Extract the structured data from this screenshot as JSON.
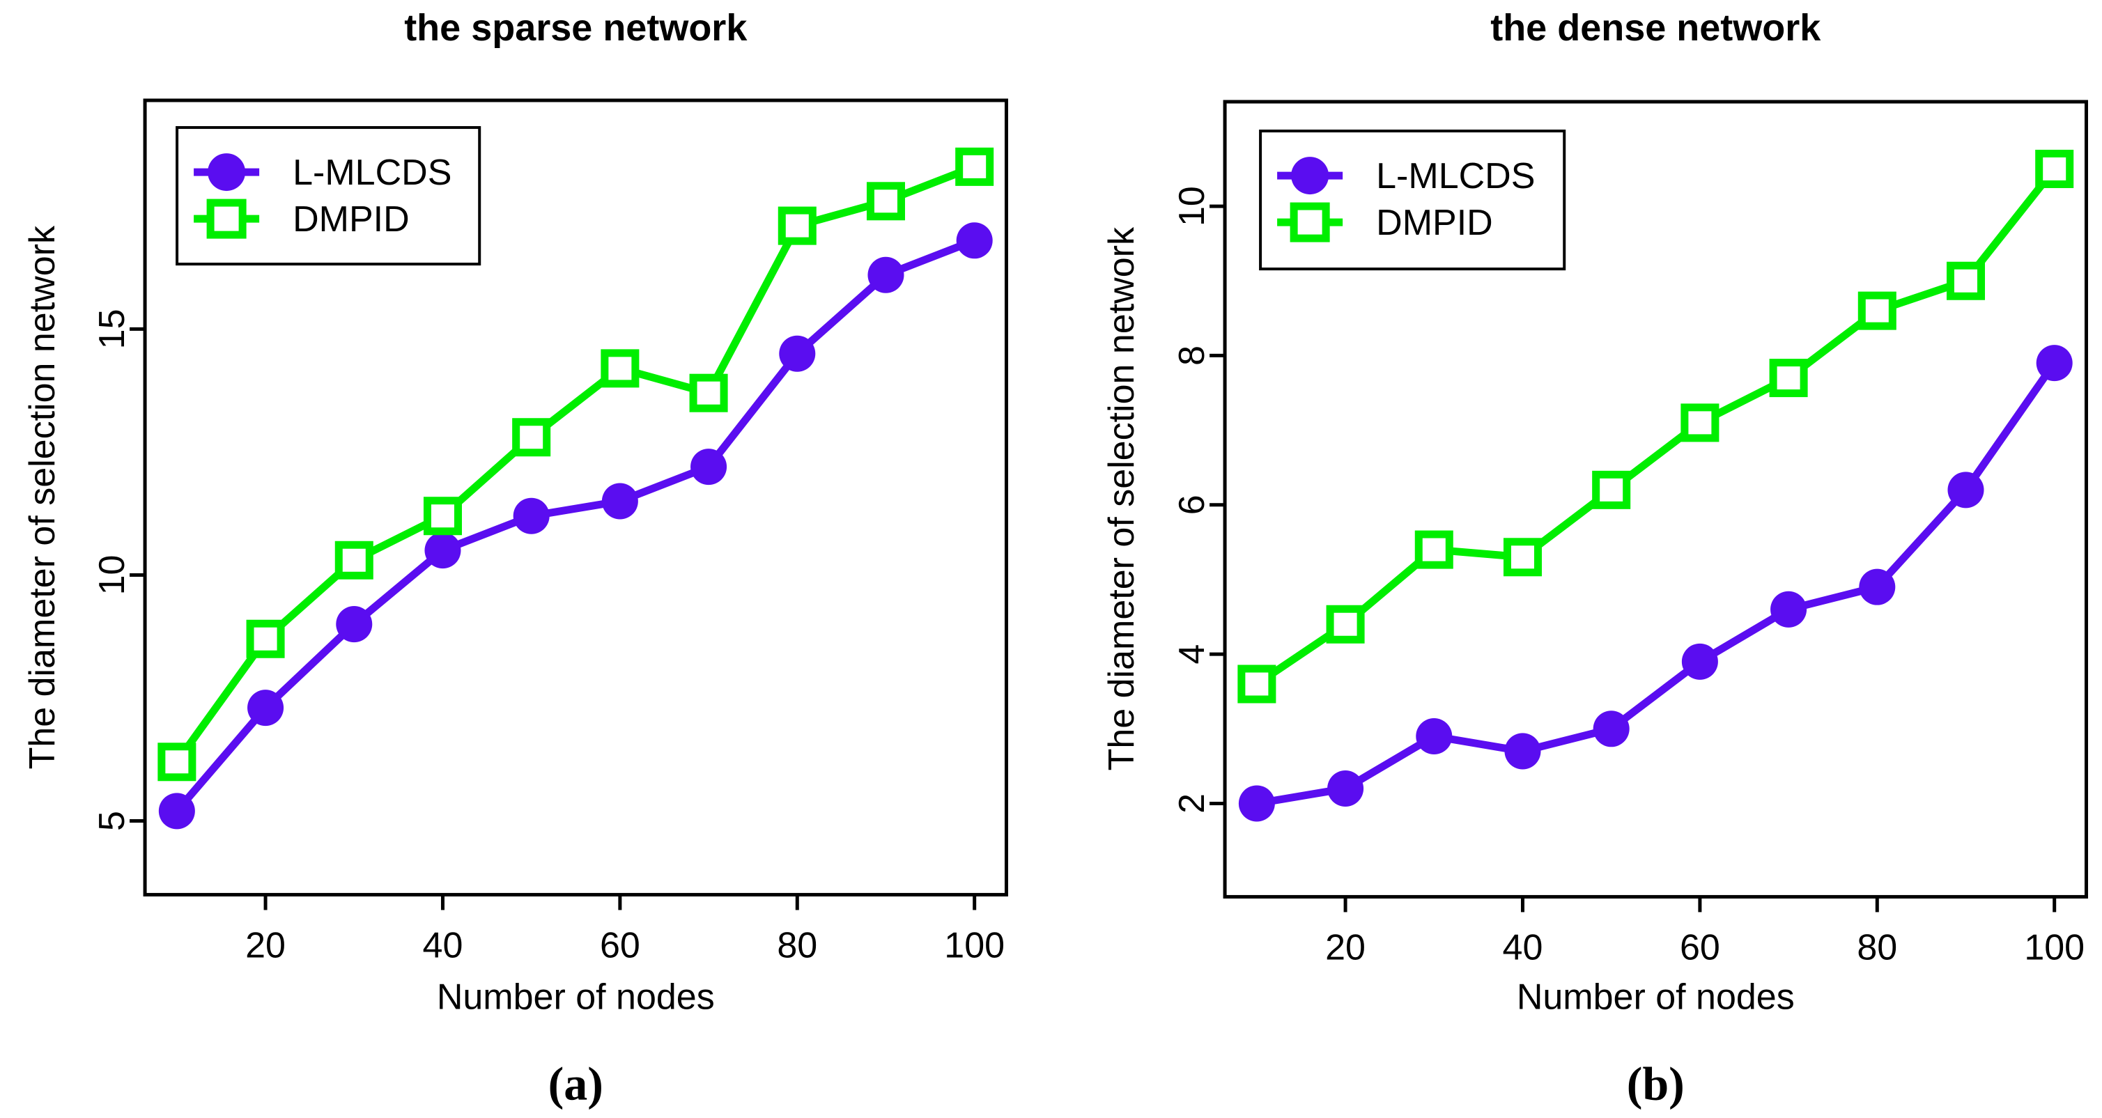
{
  "figure": {
    "panel_count": 2
  },
  "chart_data": [
    {
      "type": "line",
      "title": "the sparse network",
      "xlabel": "Number of nodes",
      "ylabel": "The diameter of selection network",
      "caption": "(a)",
      "x": [
        10,
        20,
        30,
        40,
        50,
        60,
        70,
        80,
        90,
        100
      ],
      "xticks": [
        20,
        40,
        60,
        80,
        100
      ],
      "yticks": [
        5,
        10,
        15
      ],
      "xlim": [
        6.4,
        103.6
      ],
      "ylim": [
        3.5,
        19.65
      ],
      "grid": false,
      "legend_position": "top-left",
      "series": [
        {
          "name": "L-MLCDS",
          "marker": "filled-circle",
          "color": "#5a0df0",
          "values": [
            5.2,
            7.3,
            9.0,
            10.5,
            11.2,
            11.5,
            12.2,
            14.5,
            16.1,
            16.8
          ]
        },
        {
          "name": "DMPID",
          "marker": "open-square",
          "color": "#00ee00",
          "values": [
            6.2,
            8.7,
            10.3,
            11.2,
            12.8,
            14.2,
            13.7,
            17.1,
            17.6,
            18.3
          ]
        }
      ]
    },
    {
      "type": "line",
      "title": "the dense network",
      "xlabel": "Number of nodes",
      "ylabel": "The diameter of selection network",
      "caption": "(b)",
      "x": [
        10,
        20,
        30,
        40,
        50,
        60,
        70,
        80,
        90,
        100
      ],
      "xticks": [
        20,
        40,
        60,
        80,
        100
      ],
      "yticks": [
        2,
        4,
        6,
        8,
        10
      ],
      "xlim": [
        6.4,
        103.6
      ],
      "ylim": [
        0.75,
        11.4
      ],
      "grid": false,
      "legend_position": "top-left",
      "series": [
        {
          "name": "L-MLCDS",
          "marker": "filled-circle",
          "color": "#5a0df0",
          "values": [
            2.0,
            2.2,
            2.9,
            2.7,
            3.0,
            3.9,
            4.6,
            4.9,
            6.2,
            7.9
          ]
        },
        {
          "name": "DMPID",
          "marker": "open-square",
          "color": "#00ee00",
          "values": [
            3.6,
            4.4,
            5.4,
            5.3,
            6.2,
            7.1,
            7.7,
            8.6,
            9.0,
            10.5
          ]
        }
      ]
    }
  ]
}
